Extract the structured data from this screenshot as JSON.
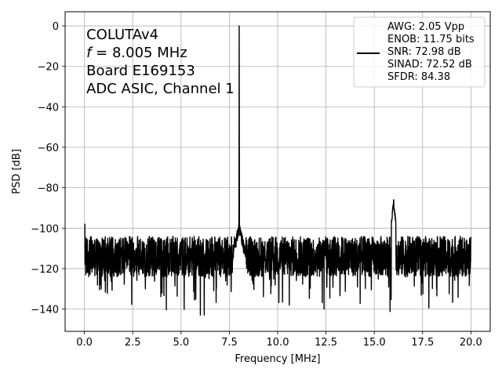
{
  "chart_data": {
    "type": "line",
    "title": "",
    "xlabel": "Frequency [MHz]",
    "ylabel": "PSD [dB]",
    "xlim": [
      -1,
      21
    ],
    "ylim": [
      -151,
      7
    ],
    "grid": true,
    "x_ticks": [
      0.0,
      2.5,
      5.0,
      7.5,
      10.0,
      12.5,
      15.0,
      17.5,
      20.0
    ],
    "x_tick_labels": [
      "0.0",
      "2.5",
      "5.0",
      "7.5",
      "10.0",
      "12.5",
      "15.0",
      "17.5",
      "20.0"
    ],
    "y_ticks": [
      0,
      -20,
      -40,
      -60,
      -80,
      -100,
      -120,
      -140
    ],
    "y_tick_labels": [
      "0",
      "−20",
      "−40",
      "−60",
      "−80",
      "−100",
      "−120",
      "−140"
    ],
    "annotation": {
      "line1": "COLUTAv4",
      "line2_var": "f",
      "line2_rest": " = 8.005 MHz",
      "line3": "Board E169153",
      "line4": "ADC ASIC, Channel 1"
    },
    "legend": {
      "position": "top-right",
      "entries": [
        "AWG: 2.05 Vpp",
        "ENOB: 11.75 bits",
        "SNR: 72.98 dB",
        "SINAD: 72.52 dB",
        "SFDR: 84.38"
      ]
    },
    "series": [
      {
        "color": "#000000",
        "noise_floor_db": -114,
        "noise_range_db": [
          -124,
          -104
        ],
        "x_range": [
          0,
          20
        ],
        "peaks": [
          {
            "x": 8.005,
            "y": 0
          },
          {
            "x": 7.8,
            "y": -100
          },
          {
            "x": 8.2,
            "y": -100
          },
          {
            "x": 16.0,
            "y": -87
          },
          {
            "x": 0.0,
            "y": -98
          }
        ],
        "dips_min_db": [
          -143,
          -143,
          -140,
          -138
        ]
      }
    ]
  }
}
